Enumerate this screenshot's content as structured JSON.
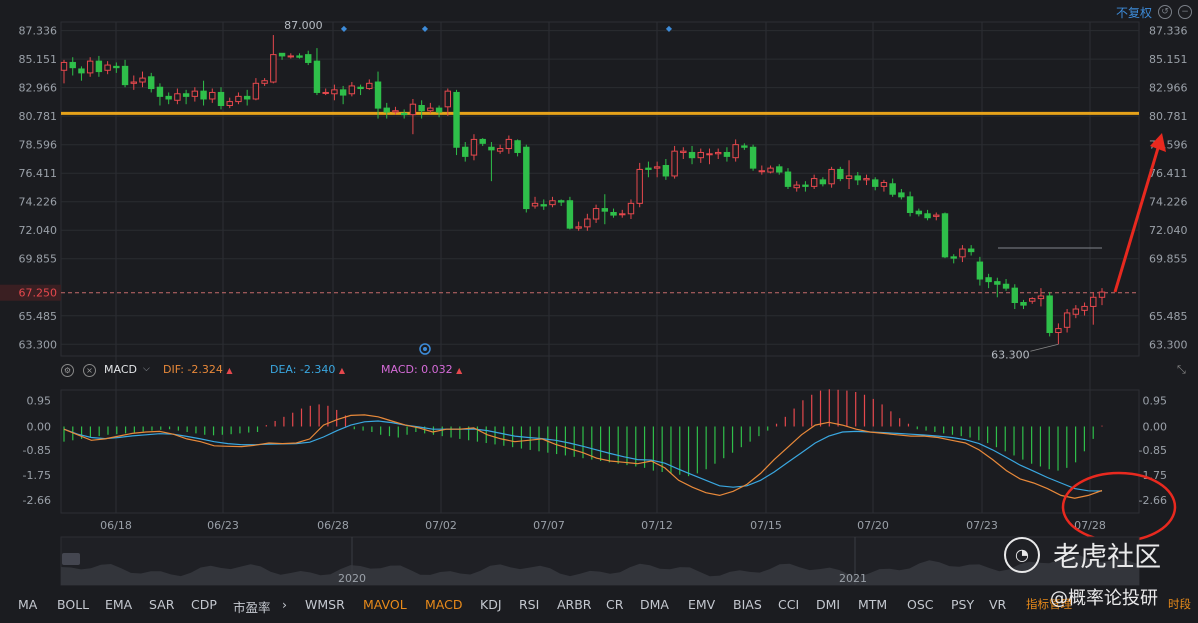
{
  "toolbar": {
    "adjust_label": "不复权",
    "refresh_icon": "undo-icon",
    "zoom_icon": "zoom-out-icon"
  },
  "price_axis": {
    "ticks": [
      "87.336",
      "85.151",
      "82.966",
      "80.781",
      "78.596",
      "76.411",
      "74.226",
      "72.040",
      "69.855",
      "67.250",
      "65.485",
      "63.300"
    ],
    "current_price": "67.250",
    "high_label": "87.000",
    "low_label": "63.300"
  },
  "macd_header": {
    "indicator": "MACD",
    "dif": "DIF: -2.324",
    "dea": "DEA: -2.340",
    "macd": "MACD: 0.032",
    "colors": {
      "dif": "#e8893a",
      "dea": "#3aa7e0",
      "macd": "#d56bd8"
    }
  },
  "macd_axis": {
    "ticks": [
      "0.95",
      "0.00",
      "-0.85",
      "-1.75",
      "-2.66"
    ]
  },
  "date_axis": [
    "06/18",
    "06/23",
    "06/28",
    "07/02",
    "07/07",
    "07/12",
    "07/15",
    "07/20",
    "07/23",
    "07/28"
  ],
  "overview": {
    "years": [
      "2020",
      "2021"
    ]
  },
  "indicator_tabs": [
    {
      "label": "MA",
      "active": false
    },
    {
      "label": "BOLL",
      "active": false
    },
    {
      "label": "EMA",
      "active": false
    },
    {
      "label": "SAR",
      "active": false
    },
    {
      "label": "CDP",
      "active": false
    },
    {
      "label": "市盈率",
      "active": false
    },
    {
      "label": "WMSR",
      "active": false
    },
    {
      "label": "MAVOL",
      "active": true
    },
    {
      "label": "MACD",
      "active": true
    },
    {
      "label": "KDJ",
      "active": false
    },
    {
      "label": "RSI",
      "active": false
    },
    {
      "label": "ARBR",
      "active": false
    },
    {
      "label": "CR",
      "active": false
    },
    {
      "label": "DMA",
      "active": false
    },
    {
      "label": "EMV",
      "active": false
    },
    {
      "label": "BIAS",
      "active": false
    },
    {
      "label": "CCI",
      "active": false
    },
    {
      "label": "DMI",
      "active": false
    },
    {
      "label": "MTM",
      "active": false
    },
    {
      "label": "OSC",
      "active": false
    },
    {
      "label": "PSY",
      "active": false
    },
    {
      "label": "VR",
      "active": false
    }
  ],
  "footer": {
    "manage": "指标管理",
    "period": "时段"
  },
  "watermarks": {
    "site": "老虎社区",
    "author": "@概率论投研"
  },
  "colors": {
    "up": "#e5484d",
    "down": "#2fbf4a",
    "support_line": "#e6a21a",
    "background": "#1b1c20",
    "annotation": "#e8291f"
  },
  "chart_data": {
    "type": "candlestick",
    "y_range": [
      62.4,
      88.0
    ],
    "price_levels": {
      "support_resistance": 81.0,
      "current": 67.25,
      "high": 87.0,
      "low": 63.3
    },
    "candles": [
      [
        84.3,
        84.9,
        83.3,
        85.1
      ],
      [
        84.9,
        84.5,
        83.9,
        85.3
      ],
      [
        84.4,
        84.1,
        83.5,
        84.6
      ],
      [
        84.1,
        85.0,
        83.8,
        85.3
      ],
      [
        85.0,
        84.2,
        83.8,
        85.4
      ],
      [
        84.3,
        84.7,
        84.0,
        85.0
      ],
      [
        84.6,
        84.5,
        84.1,
        84.9
      ],
      [
        84.6,
        83.2,
        83.0,
        85.1
      ],
      [
        83.3,
        83.4,
        82.8,
        83.9
      ],
      [
        83.4,
        83.7,
        83.0,
        84.2
      ],
      [
        83.8,
        82.9,
        82.6,
        84.1
      ],
      [
        83.0,
        82.3,
        81.6,
        83.3
      ],
      [
        82.3,
        82.1,
        81.7,
        82.6
      ],
      [
        82.0,
        82.5,
        81.7,
        82.9
      ],
      [
        82.5,
        82.3,
        81.7,
        82.8
      ],
      [
        82.3,
        82.7,
        81.9,
        83.0
      ],
      [
        82.7,
        82.1,
        81.6,
        83.5
      ],
      [
        82.1,
        82.6,
        81.8,
        82.9
      ],
      [
        82.6,
        81.6,
        81.3,
        83.0
      ],
      [
        81.6,
        81.9,
        81.4,
        82.2
      ],
      [
        81.9,
        82.3,
        81.7,
        82.6
      ],
      [
        82.3,
        82.1,
        81.6,
        82.8
      ],
      [
        82.1,
        83.3,
        82.0,
        83.7
      ],
      [
        83.3,
        83.5,
        83.1,
        83.7
      ],
      [
        83.4,
        85.5,
        83.3,
        87.0
      ],
      [
        85.6,
        85.4,
        85.1,
        85.6
      ],
      [
        85.4,
        85.4,
        85.2,
        85.6
      ],
      [
        85.4,
        85.3,
        85.2,
        85.6
      ],
      [
        85.5,
        84.9,
        84.7,
        85.8
      ],
      [
        85.0,
        82.6,
        82.4,
        86.0
      ],
      [
        82.6,
        82.6,
        82.4,
        82.9
      ],
      [
        82.5,
        82.8,
        82.0,
        83.2
      ],
      [
        82.8,
        82.4,
        81.7,
        83.1
      ],
      [
        82.5,
        83.1,
        82.3,
        83.4
      ],
      [
        83.0,
        82.9,
        82.4,
        83.2
      ],
      [
        82.9,
        83.3,
        82.8,
        83.6
      ],
      [
        83.4,
        81.4,
        80.6,
        84.2
      ],
      [
        81.4,
        81.1,
        80.6,
        81.8
      ],
      [
        81.1,
        81.2,
        80.9,
        81.5
      ],
      [
        81.0,
        80.9,
        80.6,
        81.3
      ],
      [
        80.9,
        81.7,
        79.4,
        82.1
      ],
      [
        81.6,
        81.2,
        80.6,
        82.0
      ],
      [
        81.2,
        81.4,
        81.0,
        81.8
      ],
      [
        81.4,
        81.1,
        80.7,
        81.6
      ],
      [
        81.5,
        82.7,
        80.8,
        82.9
      ],
      [
        82.6,
        78.4,
        77.8,
        82.8
      ],
      [
        78.4,
        77.7,
        77.3,
        78.8
      ],
      [
        77.8,
        79.0,
        77.4,
        79.4
      ],
      [
        79.0,
        78.7,
        78.5,
        79.1
      ],
      [
        78.4,
        78.2,
        75.8,
        78.8
      ],
      [
        78.1,
        78.3,
        77.9,
        78.6
      ],
      [
        78.3,
        79.0,
        77.9,
        79.3
      ],
      [
        78.9,
        78.0,
        77.7,
        79.0
      ],
      [
        78.4,
        73.7,
        73.4,
        78.6
      ],
      [
        73.9,
        74.1,
        73.7,
        74.6
      ],
      [
        74.0,
        73.9,
        73.6,
        74.4
      ],
      [
        74.0,
        74.3,
        73.8,
        74.6
      ],
      [
        74.3,
        74.2,
        73.9,
        74.4
      ],
      [
        74.3,
        72.2,
        72.1,
        74.6
      ],
      [
        72.2,
        72.3,
        72.0,
        72.7
      ],
      [
        72.3,
        72.9,
        72.0,
        73.3
      ],
      [
        72.9,
        73.7,
        72.6,
        74.0
      ],
      [
        73.7,
        73.5,
        72.5,
        74.8
      ],
      [
        73.4,
        73.2,
        73.0,
        73.7
      ],
      [
        73.3,
        73.3,
        73.0,
        73.6
      ],
      [
        73.3,
        74.1,
        72.9,
        74.4
      ],
      [
        74.1,
        76.7,
        73.8,
        77.2
      ],
      [
        76.8,
        76.7,
        76.1,
        77.3
      ],
      [
        76.8,
        76.9,
        76.1,
        77.3
      ],
      [
        77.0,
        76.2,
        75.9,
        77.5
      ],
      [
        76.2,
        78.1,
        76.0,
        78.5
      ],
      [
        78.0,
        78.1,
        77.5,
        78.4
      ],
      [
        78.0,
        77.6,
        77.1,
        78.5
      ],
      [
        77.6,
        78.0,
        77.2,
        78.3
      ],
      [
        77.9,
        77.9,
        77.1,
        78.3
      ],
      [
        77.9,
        78.0,
        77.5,
        78.3
      ],
      [
        78.0,
        77.7,
        77.3,
        78.4
      ],
      [
        77.6,
        78.6,
        77.3,
        79.0
      ],
      [
        78.5,
        78.4,
        78.2,
        78.7
      ],
      [
        78.4,
        76.8,
        76.6,
        78.6
      ],
      [
        76.6,
        76.6,
        76.3,
        77.0
      ],
      [
        76.5,
        76.8,
        76.4,
        77.0
      ],
      [
        76.9,
        76.5,
        76.3,
        77.1
      ],
      [
        76.5,
        75.4,
        75.2,
        76.8
      ],
      [
        75.3,
        75.5,
        75.0,
        75.8
      ],
      [
        75.5,
        75.4,
        75.0,
        75.8
      ],
      [
        75.4,
        76.0,
        75.2,
        76.3
      ],
      [
        75.9,
        75.6,
        75.4,
        76.1
      ],
      [
        75.6,
        76.7,
        75.3,
        76.9
      ],
      [
        76.7,
        76.0,
        75.8,
        76.9
      ],
      [
        76.0,
        76.2,
        75.2,
        77.4
      ],
      [
        76.2,
        75.9,
        75.5,
        76.5
      ],
      [
        75.9,
        76.0,
        75.5,
        76.3
      ],
      [
        75.9,
        75.4,
        75.1,
        76.1
      ],
      [
        75.4,
        75.7,
        75.0,
        75.9
      ],
      [
        75.6,
        74.8,
        74.6,
        76.0
      ],
      [
        74.9,
        74.6,
        74.4,
        75.2
      ],
      [
        74.6,
        73.4,
        73.1,
        75.0
      ],
      [
        73.5,
        73.3,
        73.1,
        73.7
      ],
      [
        73.3,
        73.0,
        72.8,
        73.6
      ],
      [
        73.1,
        73.2,
        72.8,
        73.4
      ],
      [
        73.3,
        70.0,
        69.9,
        73.4
      ],
      [
        70.0,
        69.9,
        69.5,
        70.2
      ],
      [
        70.0,
        70.6,
        69.6,
        70.9
      ],
      [
        70.6,
        70.4,
        70.1,
        70.9
      ],
      [
        69.6,
        68.3,
        67.8,
        70.0
      ],
      [
        68.4,
        68.1,
        67.6,
        68.7
      ],
      [
        68.1,
        67.9,
        66.9,
        68.4
      ],
      [
        67.9,
        67.6,
        67.4,
        68.3
      ],
      [
        67.6,
        66.5,
        66.0,
        67.9
      ],
      [
        66.5,
        66.3,
        66.0,
        66.7
      ],
      [
        66.6,
        66.8,
        66.4,
        66.9
      ],
      [
        66.8,
        67.0,
        66.2,
        67.6
      ],
      [
        67.0,
        64.2,
        63.9,
        67.3
      ],
      [
        64.2,
        64.5,
        63.3,
        64.9
      ],
      [
        64.6,
        65.7,
        64.2,
        66.0
      ],
      [
        65.6,
        66.0,
        65.3,
        66.3
      ],
      [
        65.9,
        66.2,
        65.5,
        66.5
      ],
      [
        66.2,
        66.9,
        64.8,
        67.3
      ],
      [
        66.9,
        67.3,
        66.3,
        67.6
      ]
    ],
    "macd_range": [
      -3.1,
      1.25
    ],
    "dif": [
      -0.1,
      -0.3,
      -0.5,
      -0.45,
      -0.35,
      -0.25,
      -0.2,
      -0.18,
      -0.28,
      -0.45,
      -0.55,
      -0.7,
      -0.72,
      -0.73,
      -0.68,
      -0.6,
      -0.62,
      -0.6,
      -0.45,
      0.05,
      0.25,
      0.4,
      0.42,
      0.35,
      0.2,
      0.05,
      -0.05,
      -0.2,
      -0.1,
      -0.1,
      -0.05,
      -0.3,
      -0.45,
      -0.55,
      -0.5,
      -0.45,
      -0.65,
      -0.8,
      -0.95,
      -1.15,
      -1.25,
      -1.3,
      -1.35,
      -1.25,
      -1.5,
      -1.95,
      -2.2,
      -2.4,
      -2.5,
      -2.35,
      -2.1,
      -1.7,
      -1.2,
      -0.75,
      -0.3,
      0.05,
      0.15,
      0.05,
      -0.1,
      -0.2,
      -0.25,
      -0.3,
      -0.35,
      -0.35,
      -0.4,
      -0.5,
      -0.6,
      -0.85,
      -1.2,
      -1.6,
      -1.9,
      -2.05,
      -2.25,
      -2.5,
      -2.6,
      -2.5,
      -2.32
    ],
    "dea": [
      -0.1,
      -0.28,
      -0.4,
      -0.44,
      -0.4,
      -0.34,
      -0.3,
      -0.26,
      -0.28,
      -0.36,
      -0.45,
      -0.55,
      -0.62,
      -0.66,
      -0.66,
      -0.64,
      -0.63,
      -0.62,
      -0.57,
      -0.38,
      -0.15,
      0.05,
      0.17,
      0.2,
      0.14,
      0.05,
      -0.02,
      -0.1,
      -0.1,
      -0.1,
      -0.09,
      -0.15,
      -0.25,
      -0.35,
      -0.4,
      -0.44,
      -0.5,
      -0.6,
      -0.72,
      -0.85,
      -0.98,
      -1.1,
      -1.2,
      -1.22,
      -1.33,
      -1.55,
      -1.75,
      -1.95,
      -2.15,
      -2.2,
      -2.15,
      -1.95,
      -1.65,
      -1.3,
      -0.95,
      -0.6,
      -0.35,
      -0.2,
      -0.18,
      -0.2,
      -0.22,
      -0.25,
      -0.28,
      -0.31,
      -0.35,
      -0.4,
      -0.48,
      -0.62,
      -0.85,
      -1.12,
      -1.4,
      -1.62,
      -1.85,
      -2.05,
      -2.25,
      -2.33,
      -2.34
    ],
    "macd_hist": [
      -0.55,
      -0.5,
      -0.45,
      -0.4,
      -0.35,
      -0.3,
      -0.28,
      -0.25,
      -0.22,
      -0.18,
      -0.15,
      -0.12,
      -0.1,
      -0.15,
      -0.2,
      -0.25,
      -0.3,
      -0.32,
      -0.3,
      -0.28,
      -0.25,
      -0.22,
      -0.2,
      0.05,
      0.2,
      0.35,
      0.5,
      0.65,
      0.75,
      0.8,
      0.75,
      0.6,
      0.4,
      -0.1,
      -0.15,
      -0.2,
      -0.3,
      -0.35,
      -0.4,
      -0.3,
      -0.2,
      -0.25,
      -0.3,
      -0.35,
      -0.4,
      -0.45,
      -0.5,
      -0.55,
      -0.6,
      -0.65,
      -0.7,
      -0.75,
      -0.8,
      -0.85,
      -0.9,
      -0.95,
      -1.0,
      -1.05,
      -1.1,
      -1.15,
      -1.2,
      -1.25,
      -1.3,
      -1.35,
      -1.4,
      -1.45,
      -1.5,
      -1.6,
      -1.65,
      -1.7,
      -1.75,
      -1.8,
      -1.7,
      -1.55,
      -1.35,
      -1.15,
      -0.95,
      -0.75,
      -0.55,
      -0.35,
      -0.15,
      0.1,
      0.35,
      0.65,
      0.95,
      1.15,
      1.3,
      1.35,
      1.33,
      1.3,
      1.25,
      1.15,
      1.0,
      0.8,
      0.55,
      0.3,
      0.1,
      -0.1,
      -0.15,
      -0.2,
      -0.25,
      -0.3,
      -0.35,
      -0.4,
      -0.5,
      -0.6,
      -0.75,
      -0.9,
      -1.05,
      -1.2,
      -1.35,
      -1.45,
      -1.55,
      -1.6,
      -1.5,
      -1.3,
      -0.9,
      -0.45,
      0.03
    ]
  }
}
